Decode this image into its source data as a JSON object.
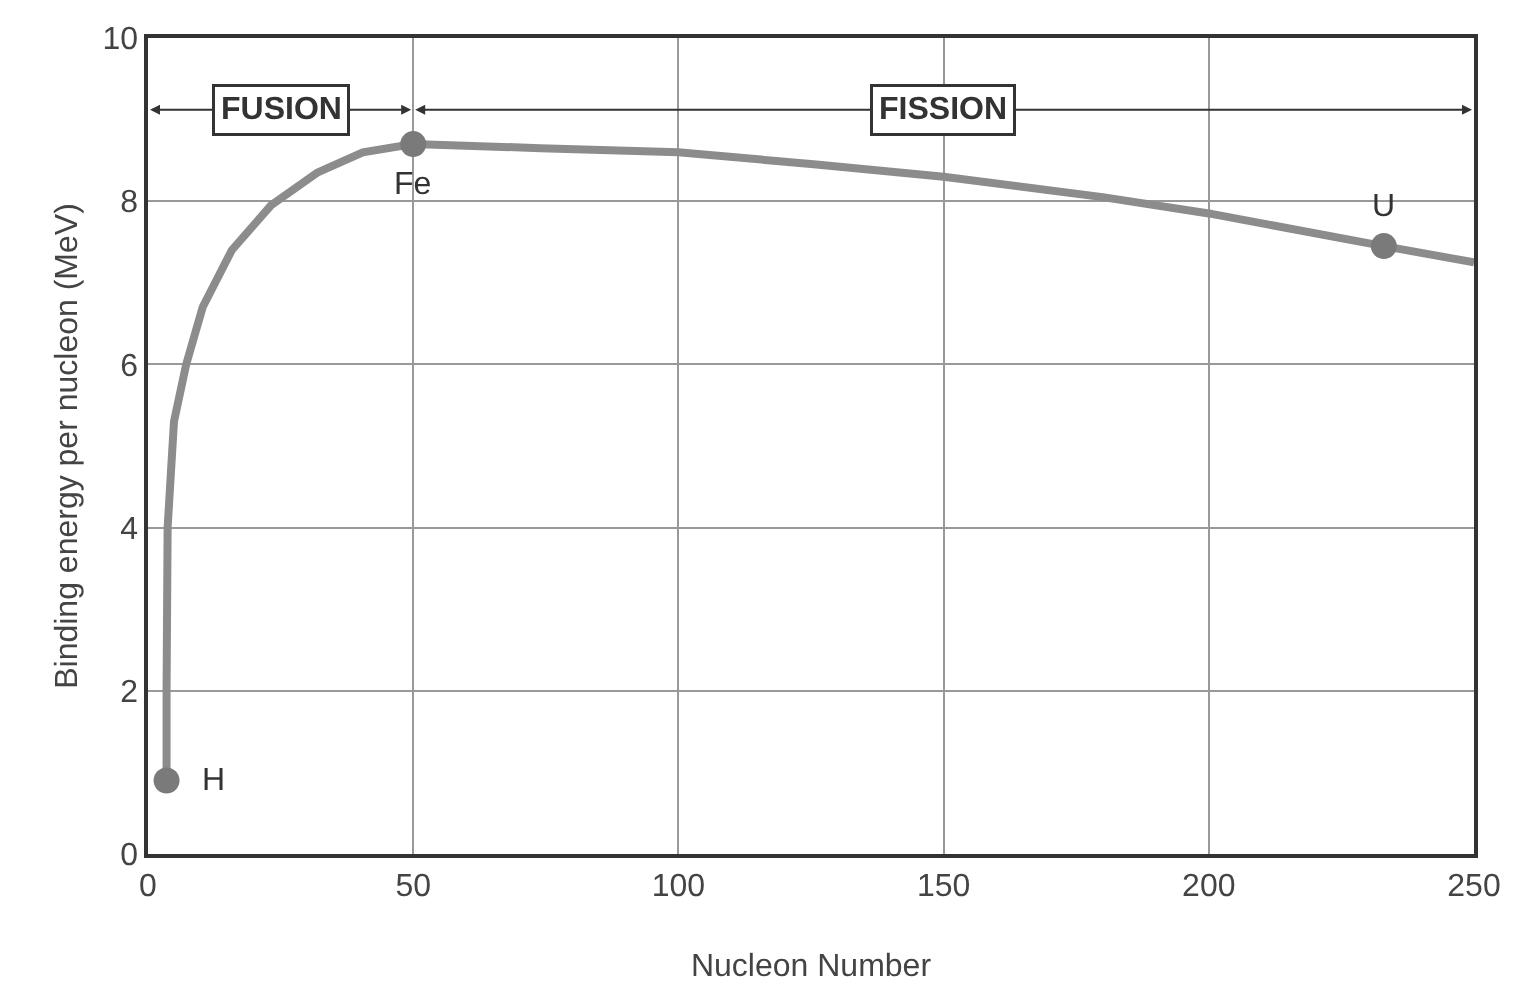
{
  "chart_data": {
    "type": "line",
    "xlabel": "Nucleon Number",
    "ylabel": "Binding energy per nucleon (MeV)",
    "xlim": [
      0,
      250
    ],
    "xticks": [
      0,
      50,
      100,
      150,
      200,
      250
    ],
    "ylim": [
      0,
      10
    ],
    "yticks": [
      0,
      2,
      4,
      6,
      8,
      10
    ],
    "grid": true,
    "series": [
      {
        "color": "#8c8c8c",
        "marker": "none",
        "x": [
          3.5,
          3.5,
          3.7,
          4.9,
          7.2,
          10.3,
          15.8,
          23.2,
          31.9,
          40.5,
          50,
          74,
          100,
          126,
          150,
          180,
          200,
          233,
          250
        ],
        "values": [
          0.9,
          2,
          4,
          5.3,
          6,
          6.7,
          7.4,
          7.95,
          8.35,
          8.6,
          8.7,
          8.65,
          8.6,
          8.45,
          8.3,
          8.05,
          7.85,
          7.45,
          7.25
        ]
      },
      {
        "type": "scatter",
        "color": "#7a7a7a",
        "marker": "circle",
        "x": [
          3.5,
          50,
          233
        ],
        "values": [
          0.9,
          8.7,
          7.45
        ]
      }
    ],
    "annotations": [
      {
        "text": "H",
        "x": 3.5,
        "y": 0.9
      },
      {
        "text": "Fe",
        "x": 50,
        "y": 8.7
      },
      {
        "text": "U",
        "x": 233,
        "y": 7.45
      },
      "FUSION",
      "FISSION"
    ]
  }
}
